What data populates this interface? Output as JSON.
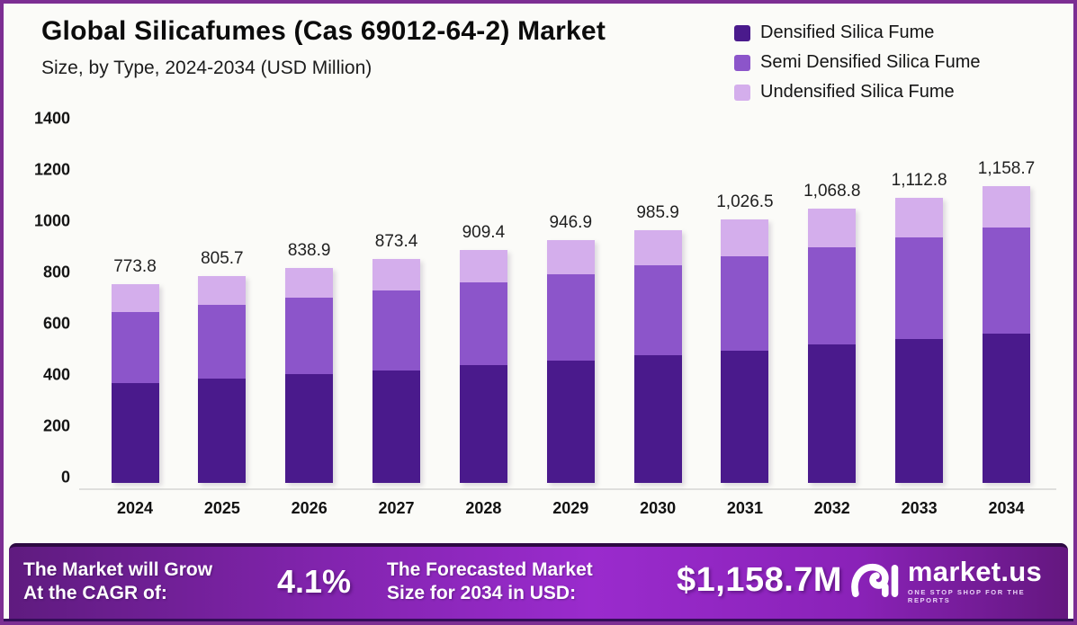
{
  "header": {
    "title": "Global Silicafumes (Cas 69012-64-2) Market",
    "subtitle": "Size, by Type, 2024-2034 (USD Million)"
  },
  "chart_data": {
    "type": "bar",
    "stacked": true,
    "title": "Global Silicafumes (Cas 69012-64-2) Market",
    "subtitle": "Size, by Type, 2024-2034 (USD Million)",
    "xlabel": "",
    "ylabel": "",
    "ylim": [
      0,
      1400
    ],
    "yticks": [
      0,
      200,
      400,
      600,
      800,
      1000,
      1200,
      1400
    ],
    "grid": false,
    "legend_position": "top-right",
    "categories": [
      "2024",
      "2025",
      "2026",
      "2027",
      "2028",
      "2029",
      "2030",
      "2031",
      "2032",
      "2033",
      "2034"
    ],
    "series": [
      {
        "name": "Densified Silica Fume",
        "color": "#4A1A8C",
        "values": [
          390.0,
          406.1,
          422.8,
          440.2,
          458.3,
          477.2,
          496.9,
          517.4,
          538.7,
          560.9,
          584.0
        ]
      },
      {
        "name": "Semi Densified Silica Fume",
        "color": "#8C55CA",
        "values": [
          276.3,
          287.6,
          299.5,
          311.8,
          324.7,
          338.0,
          352.0,
          366.5,
          381.6,
          397.3,
          413.7
        ]
      },
      {
        "name": "Undensified Silica Fume",
        "color": "#D4AEEC",
        "values": [
          107.5,
          112.0,
          116.6,
          121.4,
          126.4,
          131.7,
          137.0,
          142.6,
          148.5,
          154.6,
          161.0
        ]
      }
    ],
    "totals": [
      773.8,
      805.7,
      838.9,
      873.4,
      909.4,
      946.9,
      985.9,
      1026.5,
      1068.8,
      1112.8,
      1158.7
    ],
    "total_labels": [
      "773.8",
      "805.7",
      "838.9",
      "873.4",
      "909.4",
      "946.9",
      "985.9",
      "1,026.5",
      "1,068.8",
      "1,112.8",
      "1,158.7"
    ]
  },
  "footer": {
    "cagr_label_line1": "The Market will Grow",
    "cagr_label_line2": "At the CAGR of:",
    "cagr_value": "4.1%",
    "forecast_label_line1": "The Forecasted Market",
    "forecast_label_line2": "Size for 2034 in USD:",
    "forecast_value": "$1,158.7M",
    "brand_name": "market.us",
    "brand_tagline": "ONE STOP SHOP FOR THE REPORTS"
  },
  "colors": {
    "frame_border": "#7C2E93",
    "background": "#FBFBF8",
    "densified": "#4A1A8C",
    "semi_densified": "#8C55CA",
    "undensified": "#D4AEEC",
    "footer_gradient_left": "#5F1B7F",
    "footer_gradient_mid": "#9A2BCD",
    "footer_bottom_strip": "#340D58"
  }
}
